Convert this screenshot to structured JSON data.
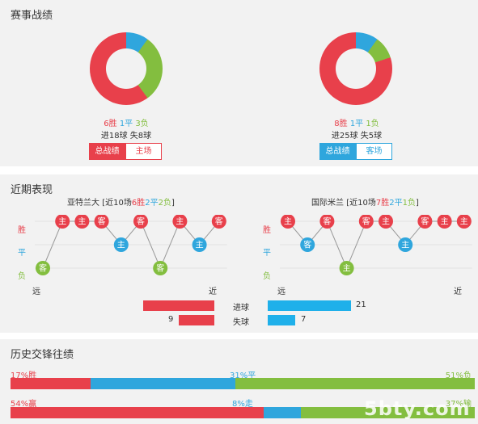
{
  "colors": {
    "win": "#e8404b",
    "draw": "#2fa6dd",
    "loss": "#83be3f",
    "panel_bg": "#f2f2f2"
  },
  "record": {
    "title": "赛事战绩",
    "team_a": {
      "wins": 6,
      "draws": 1,
      "losses": 3,
      "wins_text": "6胜",
      "draws_text": "1平",
      "losses_text": "3负",
      "goals_text": "进18球 失8球",
      "btn_total": "总战绩",
      "btn_home": "主场"
    },
    "team_b": {
      "wins": 8,
      "draws": 1,
      "losses": 1,
      "wins_text": "8胜",
      "draws_text": "1平",
      "losses_text": "1负",
      "goals_text": "进25球 失5球",
      "btn_total": "总战绩",
      "btn_away": "客场"
    }
  },
  "recent": {
    "title": "近期表现",
    "row_labels": {
      "win": "胜",
      "draw": "平",
      "loss": "负"
    },
    "far_label": "远",
    "near_label": "近",
    "team_a": {
      "name": "亚特兰大",
      "summary_prefix": "[近10场",
      "summary_wins": "6胜",
      "summary_draws": "2平",
      "summary_losses": "2负",
      "summary_suffix": "]",
      "results": [
        "L",
        "W",
        "W",
        "W",
        "D",
        "W",
        "L",
        "W",
        "D",
        "W"
      ],
      "venues": [
        "客",
        "主",
        "主",
        "客",
        "主",
        "客",
        "客",
        "主",
        "主",
        "客"
      ]
    },
    "team_b": {
      "name": "国际米兰",
      "summary_prefix": "[近10场",
      "summary_wins": "7胜",
      "summary_draws": "2平",
      "summary_losses": "1负",
      "summary_suffix": "]",
      "results": [
        "W",
        "D",
        "W",
        "L",
        "W",
        "W",
        "D",
        "W",
        "W",
        "W"
      ],
      "venues": [
        "主",
        "客",
        "客",
        "主",
        "客",
        "主",
        "主",
        "客",
        "主",
        "主"
      ]
    },
    "goals": {
      "scored_label": "进球",
      "conceded_label": "失球",
      "team_a_scored": 18,
      "team_a_conceded": 9,
      "team_b_scored": 21,
      "team_b_conceded": 7
    }
  },
  "history": {
    "title": "历史交锋往绩",
    "row1": {
      "win_text": "17%胜",
      "draw_text": "31%平",
      "loss_text": "51%负",
      "win": 17,
      "draw": 31,
      "loss": 51
    },
    "row2": {
      "win_text": "54%赢",
      "draw_text": "8%走",
      "loss_text": "37%输",
      "win": 54,
      "draw": 8,
      "loss": 37
    }
  },
  "watermark": "5bty.com"
}
